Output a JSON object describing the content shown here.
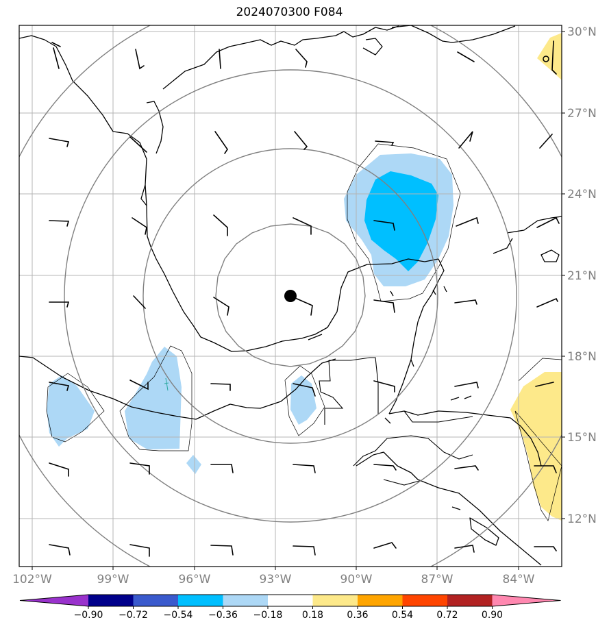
{
  "title": "2024070300 F084",
  "longitude_labels": [
    "102°W",
    "99°W",
    "96°W",
    "93°W",
    "90°W",
    "87°W",
    "84°W"
  ],
  "latitude_labels": [
    "30°N",
    "27°N",
    "24°N",
    "21°N",
    "18°N",
    "15°N",
    "12°N"
  ],
  "colorbar": {
    "tick_labels": [
      "−0.90",
      "−0.72",
      "−0.54",
      "−0.36",
      "−0.18",
      "0.18",
      "0.36",
      "0.54",
      "0.72",
      "0.90"
    ],
    "colors": [
      "#9932cc",
      "#00008b",
      "#3a5acd",
      "#00bfff",
      "#add8f6",
      "#ffffff",
      "#fde98a",
      "#ffa500",
      "#ff4500",
      "#b22222",
      "#ff88b0"
    ]
  },
  "map": {
    "center_marker": "storm-center",
    "range_rings": 4,
    "extent": {
      "lon_min": -102.4,
      "lon_max": -82.3,
      "lat_min": 10.3,
      "lat_max": 30.1
    }
  }
}
